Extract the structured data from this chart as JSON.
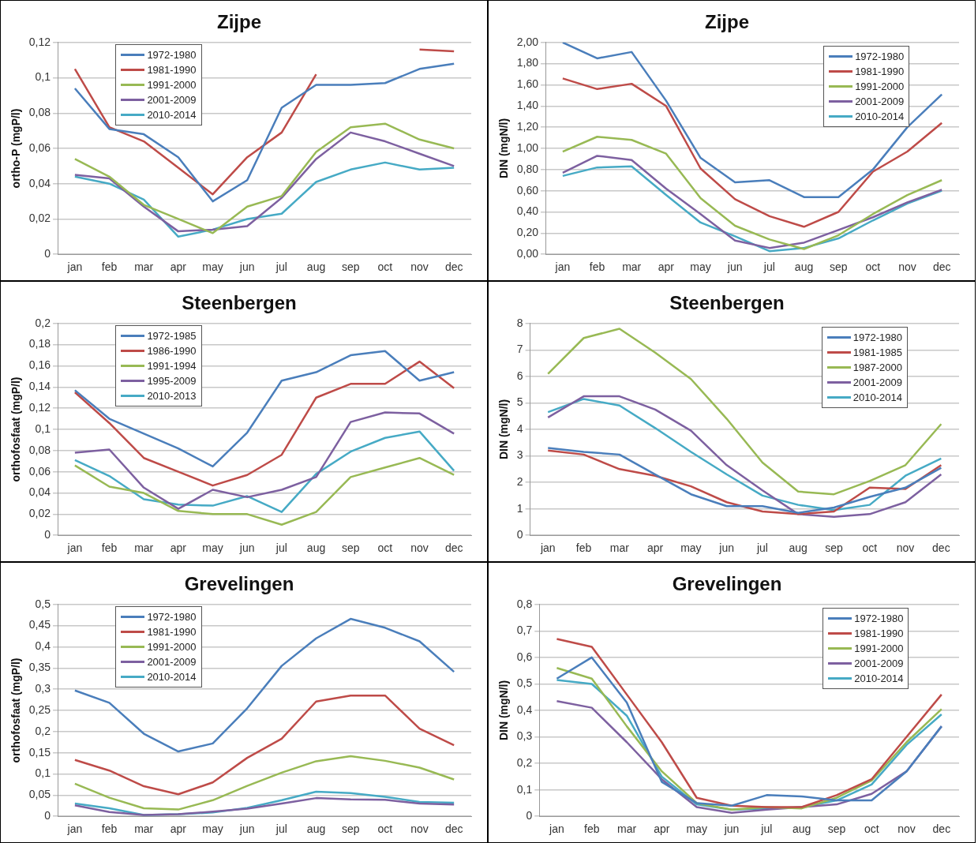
{
  "chart_data": [
    {
      "type": "line",
      "title": "Zijpe",
      "ylabel": "ortho-P (mgP/l)",
      "categories": [
        "jan",
        "feb",
        "mar",
        "apr",
        "may",
        "jun",
        "jul",
        "aug",
        "sep",
        "oct",
        "nov",
        "dec"
      ],
      "ylim": [
        0,
        0.12
      ],
      "yticks": [
        0,
        {
          "value": 0.02,
          "label": "0,02"
        },
        {
          "value": 0.04,
          "label": "0,04"
        },
        {
          "value": 0.06,
          "label": "0,06"
        },
        {
          "value": 0.08,
          "label": "0,08"
        },
        {
          "value": 0.1,
          "label": "0,1"
        },
        {
          "value": 0.12,
          "label": "0,12"
        }
      ],
      "grid": "y",
      "legend": "top left",
      "marker": "none",
      "series": [
        {
          "name": "1972-1980",
          "color": "#4a7ebb",
          "values": [
            0.094,
            0.071,
            0.068,
            0.055,
            0.03,
            0.042,
            0.083,
            0.096,
            0.096,
            0.097,
            0.105,
            0.108
          ]
        },
        {
          "name": "1981-1990",
          "color": "#be4b48",
          "values": [
            0.105,
            0.072,
            0.064,
            0.049,
            0.034,
            0.055,
            0.069,
            0.102,
            null,
            null,
            0.116,
            0.115
          ]
        },
        {
          "name": "1991-2000",
          "color": "#98b954",
          "values": [
            0.054,
            0.044,
            0.028,
            0.02,
            0.012,
            0.027,
            0.033,
            0.058,
            0.072,
            0.074,
            0.065,
            0.06
          ]
        },
        {
          "name": "2001-2009",
          "color": "#7d60a0",
          "values": [
            0.045,
            0.043,
            0.027,
            0.013,
            0.014,
            0.016,
            0.032,
            0.054,
            0.069,
            0.064,
            0.057,
            0.05
          ]
        },
        {
          "name": "2010-2014",
          "color": "#46aac5",
          "values": [
            0.044,
            0.04,
            0.031,
            0.01,
            0.014,
            0.02,
            0.023,
            0.041,
            0.048,
            0.052,
            0.048,
            0.049
          ]
        }
      ]
    },
    {
      "type": "line",
      "title": "Zijpe",
      "ylabel": "DIN (mgN/l)",
      "categories": [
        "jan",
        "feb",
        "mar",
        "apr",
        "may",
        "jun",
        "jul",
        "aug",
        "sep",
        "oct",
        "nov",
        "dec"
      ],
      "ylim": [
        0,
        2
      ],
      "yticks": [
        {
          "value": 0,
          "label": "0,00"
        },
        {
          "value": 0.2,
          "label": "0,20"
        },
        {
          "value": 0.4,
          "label": "0,40"
        },
        {
          "value": 0.6,
          "label": "0,60"
        },
        {
          "value": 0.8,
          "label": "0,80"
        },
        {
          "value": 1,
          "label": "1,00"
        },
        {
          "value": 1.2,
          "label": "1,20"
        },
        {
          "value": 1.4,
          "label": "1,40"
        },
        {
          "value": 1.6,
          "label": "1,60"
        },
        {
          "value": 1.8,
          "label": "1,80"
        },
        {
          "value": 2,
          "label": "2,00"
        }
      ],
      "grid": "y",
      "legend": "top right",
      "marker": "none",
      "series": [
        {
          "name": "1972-1980",
          "color": "#4a7ebb",
          "values": [
            2.0,
            1.85,
            1.91,
            1.45,
            0.91,
            0.68,
            0.7,
            0.54,
            0.54,
            0.8,
            1.2,
            1.51
          ]
        },
        {
          "name": "1981-1990",
          "color": "#be4b48",
          "values": [
            1.66,
            1.56,
            1.61,
            1.4,
            0.81,
            0.52,
            0.36,
            0.26,
            0.4,
            0.78,
            0.97,
            1.24
          ]
        },
        {
          "name": "1991-2000",
          "color": "#98b954",
          "values": [
            0.97,
            1.11,
            1.08,
            0.95,
            0.53,
            0.27,
            0.14,
            0.05,
            0.18,
            0.38,
            0.56,
            0.7
          ]
        },
        {
          "name": "2001-2009",
          "color": "#7d60a0",
          "values": [
            0.77,
            0.93,
            0.89,
            0.62,
            0.38,
            0.13,
            0.06,
            0.11,
            0.23,
            0.35,
            0.49,
            0.61
          ]
        },
        {
          "name": "2010-2014",
          "color": "#46aac5",
          "values": [
            0.74,
            0.82,
            0.83,
            0.56,
            0.3,
            0.17,
            0.03,
            0.06,
            0.15,
            0.32,
            0.48,
            0.6
          ]
        }
      ]
    },
    {
      "type": "line",
      "title": "Steenbergen",
      "ylabel": "orthofosfaat (mgP/l)",
      "categories": [
        "jan",
        "feb",
        "mar",
        "apr",
        "may",
        "jun",
        "jul",
        "aug",
        "sep",
        "oct",
        "nov",
        "dec"
      ],
      "ylim": [
        0,
        0.2
      ],
      "yticks": [
        0,
        {
          "value": 0.02,
          "label": "0,02"
        },
        {
          "value": 0.04,
          "label": "0,04"
        },
        {
          "value": 0.06,
          "label": "0,06"
        },
        {
          "value": 0.08,
          "label": "0,08"
        },
        {
          "value": 0.1,
          "label": "0,1"
        },
        {
          "value": 0.12,
          "label": "0,12"
        },
        {
          "value": 0.14,
          "label": "0,14"
        },
        {
          "value": 0.16,
          "label": "0,16"
        },
        {
          "value": 0.18,
          "label": "0,18"
        },
        {
          "value": 0.2,
          "label": "0,2"
        }
      ],
      "grid": "y",
      "legend": "top left",
      "marker": "none",
      "series": [
        {
          "name": "1972-1985",
          "color": "#4a7ebb",
          "values": [
            0.137,
            0.11,
            0.096,
            0.082,
            0.065,
            0.097,
            0.146,
            0.154,
            0.17,
            0.174,
            0.146,
            0.154
          ]
        },
        {
          "name": "1986-1990",
          "color": "#be4b48",
          "values": [
            0.135,
            0.106,
            0.073,
            0.06,
            0.047,
            0.057,
            0.076,
            0.13,
            0.143,
            0.143,
            0.164,
            0.139
          ]
        },
        {
          "name": "1991-1994",
          "color": "#98b954",
          "values": [
            0.066,
            0.046,
            0.04,
            0.023,
            0.02,
            0.02,
            0.01,
            0.022,
            0.055,
            0.064,
            0.073,
            0.057
          ]
        },
        {
          "name": "1995-2009",
          "color": "#7d60a0",
          "values": [
            0.078,
            0.081,
            0.045,
            0.025,
            0.043,
            0.036,
            0.043,
            0.055,
            0.107,
            0.116,
            0.115,
            0.096
          ]
        },
        {
          "name": "2010-2013",
          "color": "#46aac5",
          "values": [
            0.071,
            0.056,
            0.034,
            0.029,
            0.028,
            0.037,
            0.022,
            0.058,
            0.079,
            0.092,
            0.098,
            0.061
          ]
        }
      ]
    },
    {
      "type": "line",
      "title": "Steenbergen",
      "ylabel": "DIN (mgN/l)",
      "categories": [
        "jan",
        "feb",
        "mar",
        "apr",
        "may",
        "jun",
        "jul",
        "aug",
        "sep",
        "oct",
        "nov",
        "dec"
      ],
      "ylim": [
        0,
        8
      ],
      "yticks": [
        0,
        1,
        2,
        3,
        4,
        5,
        6,
        7,
        8
      ],
      "grid": "y",
      "legend": "top right",
      "marker": "none",
      "series": [
        {
          "name": "1972-1980",
          "color": "#4a7ebb",
          "values": [
            3.3,
            3.15,
            3.05,
            2.3,
            1.55,
            1.1,
            1.1,
            0.85,
            1.05,
            1.45,
            1.8,
            2.55
          ]
        },
        {
          "name": "1981-1985",
          "color": "#be4b48",
          "values": [
            3.2,
            3.05,
            2.5,
            2.25,
            1.85,
            1.25,
            0.9,
            0.8,
            0.9,
            1.8,
            1.75,
            2.65
          ]
        },
        {
          "name": "1987-2000",
          "color": "#98b954",
          "values": [
            6.1,
            7.45,
            7.8,
            6.9,
            5.9,
            4.4,
            2.75,
            1.65,
            1.55,
            2.05,
            2.65,
            4.2
          ]
        },
        {
          "name": "2001-2009",
          "color": "#7d60a0",
          "values": [
            4.45,
            5.25,
            5.25,
            4.75,
            3.95,
            2.65,
            1.7,
            0.8,
            0.7,
            0.8,
            1.25,
            2.3
          ]
        },
        {
          "name": "2010-2014",
          "color": "#46aac5",
          "values": [
            4.65,
            5.15,
            4.9,
            4.05,
            3.15,
            2.3,
            1.5,
            1.15,
            0.95,
            1.15,
            2.25,
            2.9
          ]
        }
      ]
    },
    {
      "type": "line",
      "title": "Grevelingen",
      "ylabel": "orthofosfaat (mgP/l)",
      "categories": [
        "jan",
        "feb",
        "mar",
        "apr",
        "may",
        "jun",
        "jul",
        "aug",
        "sep",
        "oct",
        "nov",
        "dec"
      ],
      "ylim": [
        0,
        0.5
      ],
      "yticks": [
        0,
        {
          "value": 0.05,
          "label": "0,05"
        },
        {
          "value": 0.1,
          "label": "0,1"
        },
        {
          "value": 0.15,
          "label": "0,15"
        },
        {
          "value": 0.2,
          "label": "0,2"
        },
        {
          "value": 0.25,
          "label": "0,25"
        },
        {
          "value": 0.3,
          "label": "0,3"
        },
        {
          "value": 0.35,
          "label": "0,35"
        },
        {
          "value": 0.4,
          "label": "0,4"
        },
        {
          "value": 0.45,
          "label": "0,45"
        },
        {
          "value": 0.5,
          "label": "0,5"
        }
      ],
      "grid": "y",
      "legend": "top left",
      "marker": "none",
      "series": [
        {
          "name": "1972-1980",
          "color": "#4a7ebb",
          "values": [
            0.297,
            0.268,
            0.195,
            0.153,
            0.172,
            0.255,
            0.355,
            0.42,
            0.466,
            0.445,
            0.413,
            0.341
          ]
        },
        {
          "name": "1981-1990",
          "color": "#be4b48",
          "values": [
            0.133,
            0.108,
            0.071,
            0.052,
            0.08,
            0.138,
            0.183,
            0.271,
            0.285,
            0.285,
            0.207,
            0.168
          ]
        },
        {
          "name": "1991-2000",
          "color": "#98b954",
          "values": [
            0.077,
            0.044,
            0.019,
            0.016,
            0.038,
            0.072,
            0.103,
            0.13,
            0.142,
            0.131,
            0.115,
            0.087
          ]
        },
        {
          "name": "2001-2009",
          "color": "#7d60a0",
          "values": [
            0.026,
            0.01,
            0.003,
            0.005,
            0.011,
            0.018,
            0.03,
            0.043,
            0.04,
            0.039,
            0.03,
            0.028
          ]
        },
        {
          "name": "2010-2014",
          "color": "#46aac5",
          "values": [
            0.03,
            0.019,
            0.003,
            0.005,
            0.009,
            0.02,
            0.038,
            0.058,
            0.055,
            0.046,
            0.034,
            0.032
          ]
        }
      ]
    },
    {
      "type": "line",
      "title": "Grevelingen",
      "ylabel": "DIN (mgN/l)",
      "categories": [
        "jan",
        "feb",
        "mar",
        "apr",
        "may",
        "jun",
        "jul",
        "aug",
        "sep",
        "oct",
        "nov",
        "dec"
      ],
      "ylim": [
        0,
        0.8
      ],
      "yticks": [
        0,
        {
          "value": 0.1,
          "label": "0,1"
        },
        {
          "value": 0.2,
          "label": "0,2"
        },
        {
          "value": 0.3,
          "label": "0,3"
        },
        {
          "value": 0.4,
          "label": "0,4"
        },
        {
          "value": 0.5,
          "label": "0,5"
        },
        {
          "value": 0.6,
          "label": "0,6"
        },
        {
          "value": 0.7,
          "label": "0,7"
        },
        {
          "value": 0.8,
          "label": "0,8"
        }
      ],
      "grid": "y",
      "legend": "top right",
      "marker": "none",
      "series": [
        {
          "name": "1972-1980",
          "color": "#4a7ebb",
          "values": [
            0.52,
            0.6,
            0.43,
            0.13,
            0.05,
            0.04,
            0.08,
            0.075,
            0.06,
            0.06,
            0.17,
            0.34
          ]
        },
        {
          "name": "1981-1990",
          "color": "#be4b48",
          "values": [
            0.67,
            0.64,
            0.46,
            0.28,
            0.07,
            0.04,
            0.035,
            0.035,
            0.08,
            0.14,
            0.3,
            0.46
          ]
        },
        {
          "name": "1991-2000",
          "color": "#98b954",
          "values": [
            0.56,
            0.52,
            0.34,
            0.17,
            0.05,
            0.025,
            0.035,
            0.03,
            0.07,
            0.135,
            0.28,
            0.405
          ]
        },
        {
          "name": "2001-2009",
          "color": "#7d60a0",
          "values": [
            0.435,
            0.41,
            0.28,
            0.14,
            0.035,
            0.013,
            0.025,
            0.035,
            0.045,
            0.085,
            0.17,
            0.34
          ]
        },
        {
          "name": "2010-2014",
          "color": "#46aac5",
          "values": [
            0.515,
            0.5,
            0.38,
            0.15,
            0.045,
            0.025,
            0.03,
            0.035,
            0.06,
            0.12,
            0.27,
            0.385
          ]
        }
      ]
    }
  ]
}
